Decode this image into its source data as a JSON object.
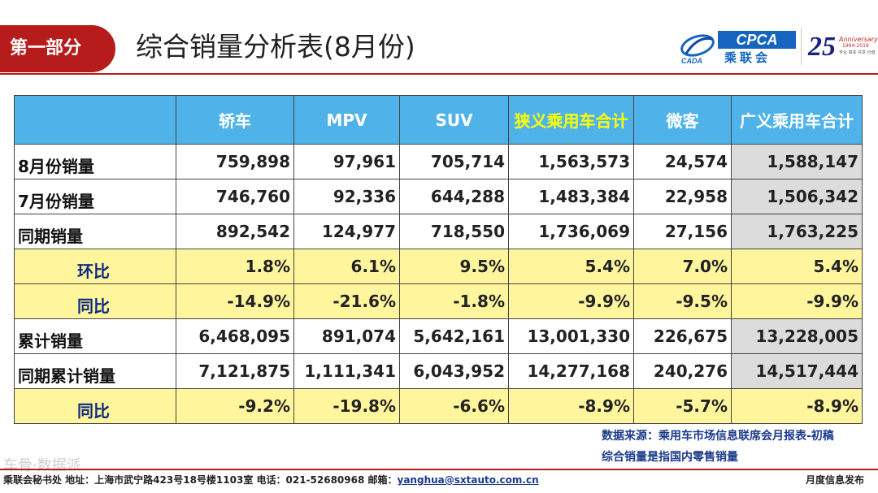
{
  "header": {
    "section_label": "第一部分",
    "title": "综合销量分析表(8月份)"
  },
  "logos": {
    "cpca_text": "CPCA",
    "cpca_cn": "乘联会",
    "cada_text": "CADA",
    "anniversary_number": "25",
    "anniversary_label": "Anniversary",
    "anniversary_years": "1994-2019",
    "anniversary_slogan": "专业 真实 共享 价值"
  },
  "table": {
    "columns": [
      "",
      "轿车",
      "MPV",
      "SUV",
      "狭义乘用车合计",
      "微客",
      "广义乘用车合计"
    ],
    "rows": [
      {
        "label": "8月份销量",
        "values": [
          "759,898",
          "97,961",
          "705,714",
          "1,563,573",
          "24,574",
          "1,588,147"
        ]
      },
      {
        "label": "7月份销量",
        "values": [
          "746,760",
          "92,336",
          "644,288",
          "1,483,384",
          "22,958",
          "1,506,342"
        ]
      },
      {
        "label": "同期销量",
        "values": [
          "892,542",
          "124,977",
          "718,550",
          "1,736,069",
          "27,156",
          "1,763,225"
        ]
      },
      {
        "label": "环比",
        "values": [
          "1.8%",
          "6.1%",
          "9.5%",
          "5.4%",
          "7.0%",
          "5.4%"
        ]
      },
      {
        "label": "同比",
        "values": [
          "-14.9%",
          "-21.6%",
          "-1.8%",
          "-9.9%",
          "-9.5%",
          "-9.9%"
        ]
      },
      {
        "label": "累计销量",
        "values": [
          "6,468,095",
          "891,074",
          "5,642,161",
          "13,001,330",
          "226,675",
          "13,228,005"
        ]
      },
      {
        "label": "同期累计销量",
        "values": [
          "7,121,875",
          "1,111,341",
          "6,043,952",
          "14,277,168",
          "240,276",
          "14,517,444"
        ]
      },
      {
        "label": "同比",
        "values": [
          "-9.2%",
          "-19.8%",
          "-6.6%",
          "-8.9%",
          "-5.7%",
          "-8.9%"
        ]
      }
    ]
  },
  "notes": {
    "source": "数据来源：乘用车市场信息联席会月报表-初稿",
    "definition": "综合销量是指国内零售销量"
  },
  "footer": {
    "contact_prefix": "乘联会秘书处  地址：上海市武宁路423号18号楼1103室  电话：021-52680968   邮箱：",
    "email": "yanghua@sxtauto.com.cn",
    "right_label": "月度信息发布",
    "watermark": "车骨·数据派"
  },
  "colors": {
    "brand_red": "#b71c1c",
    "header_blue": "#4fb3ea",
    "highlight_yellow": "#ffff00",
    "ratio_row_fill": "#fff59d",
    "total_column_gray": "#dcdcdc"
  }
}
